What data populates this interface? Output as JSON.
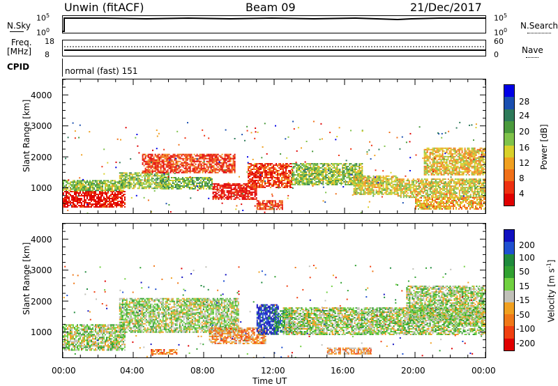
{
  "header": {
    "title": "Unwin (fitACF)",
    "beam": "Beam 09",
    "date": "21/Dec/2017"
  },
  "status": {
    "nsky_label": "N.Sky",
    "nsky_ticks": [
      "10^5",
      "10^0"
    ],
    "nsearch_label": "N.Search",
    "freq_label_1": "Freq.",
    "freq_label_2": "[MHz]",
    "freq_ticks": [
      "18",
      "8"
    ],
    "nave_ticks": [
      "60",
      "0"
    ],
    "nave_label": "Nave",
    "cpid_label": "CPID",
    "cpid_value": "normal (fast) 151"
  },
  "chart_data": [
    {
      "type": "heatmap",
      "ylabel": "Slant Range [km]",
      "y_ticks": [
        "1000",
        "2000",
        "3000",
        "4000"
      ],
      "ylim": [
        180,
        4500
      ],
      "x_ticks": [
        "00:00",
        "04:00",
        "08:00",
        "12:00",
        "16:00",
        "20:00",
        "00:00"
      ],
      "colorbar": {
        "label": "Power [dB]",
        "tick_labels": [
          "4",
          "8",
          "12",
          "16",
          "20",
          "24",
          "28"
        ],
        "colors": [
          "#0000e6",
          "#1a4fb0",
          "#2e7a5a",
          "#4a9a3c",
          "#7fc24a",
          "#d8d02a",
          "#f0a020",
          "#f07018",
          "#ee3010",
          "#e00000"
        ]
      },
      "bands": [
        {
          "t0": 0.0,
          "t1": 3.5,
          "r0": 400,
          "r1": 900,
          "level": 0.95
        },
        {
          "t0": 0.0,
          "t1": 3.5,
          "r0": 900,
          "r1": 1250,
          "level": 0.45
        },
        {
          "t0": 3.2,
          "t1": 6.0,
          "r0": 1000,
          "r1": 1500,
          "level": 0.45
        },
        {
          "t0": 4.5,
          "t1": 9.8,
          "r0": 1500,
          "r1": 2100,
          "level": 0.85
        },
        {
          "t0": 5.5,
          "t1": 8.5,
          "r0": 950,
          "r1": 1350,
          "level": 0.4
        },
        {
          "t0": 8.5,
          "t1": 11.0,
          "r0": 650,
          "r1": 1150,
          "level": 0.95
        },
        {
          "t0": 10.5,
          "t1": 13.0,
          "r0": 1000,
          "r1": 1800,
          "level": 0.85
        },
        {
          "t0": 13.0,
          "t1": 17.0,
          "r0": 1100,
          "r1": 1800,
          "level": 0.45
        },
        {
          "t0": 16.5,
          "t1": 19.0,
          "r0": 800,
          "r1": 1400,
          "level": 0.55
        },
        {
          "t0": 19.0,
          "t1": 24.0,
          "r0": 700,
          "r1": 1300,
          "level": 0.55
        },
        {
          "t0": 20.5,
          "t1": 24.0,
          "r0": 1400,
          "r1": 2300,
          "level": 0.6
        },
        {
          "t0": 11.0,
          "t1": 12.5,
          "r0": 300,
          "r1": 600,
          "level": 0.85
        },
        {
          "t0": 20.0,
          "t1": 24.0,
          "r0": 300,
          "r1": 700,
          "level": 0.65
        }
      ]
    },
    {
      "type": "heatmap",
      "ylabel": "Slant Range [km]",
      "y_ticks": [
        "1000",
        "2000",
        "3000",
        "4000"
      ],
      "ylim": [
        180,
        4500
      ],
      "x_ticks": [
        "00:00",
        "04:00",
        "08:00",
        "12:00",
        "16:00",
        "20:00",
        "00:00"
      ],
      "xlabel": "Time UT",
      "colorbar": {
        "label": "Velocity [m s^-1]",
        "tick_labels": [
          "200",
          "100",
          "50",
          "15",
          "-15",
          "-50",
          "-100",
          "-200"
        ],
        "colors": [
          "#1010c0",
          "#1f50d0",
          "#1f8a3c",
          "#30a030",
          "#70d040",
          "#c0c0b8",
          "#f0a020",
          "#f07818",
          "#f04010",
          "#e00000"
        ]
      },
      "bands": [
        {
          "t0": 0.0,
          "t1": 3.5,
          "r0": 400,
          "r1": 1250,
          "level": 0.5
        },
        {
          "t0": 3.2,
          "t1": 10.0,
          "r0": 1000,
          "r1": 2100,
          "level": 0.5
        },
        {
          "t0": 8.3,
          "t1": 11.5,
          "r0": 650,
          "r1": 1150,
          "level": 0.7
        },
        {
          "t0": 11.0,
          "t1": 12.2,
          "r0": 950,
          "r1": 1900,
          "level": 0.1
        },
        {
          "t0": 12.0,
          "t1": 13.0,
          "r0": 1000,
          "r1": 1700,
          "level": 0.3
        },
        {
          "t0": 12.5,
          "t1": 24.0,
          "r0": 900,
          "r1": 1800,
          "level": 0.5
        },
        {
          "t0": 19.5,
          "t1": 24.0,
          "r0": 1400,
          "r1": 2500,
          "level": 0.5
        },
        {
          "t0": 15.0,
          "t1": 17.5,
          "r0": 300,
          "r1": 500,
          "level": 0.7
        },
        {
          "t0": 5.0,
          "t1": 6.5,
          "r0": 300,
          "r1": 450,
          "level": 0.75
        }
      ]
    }
  ]
}
